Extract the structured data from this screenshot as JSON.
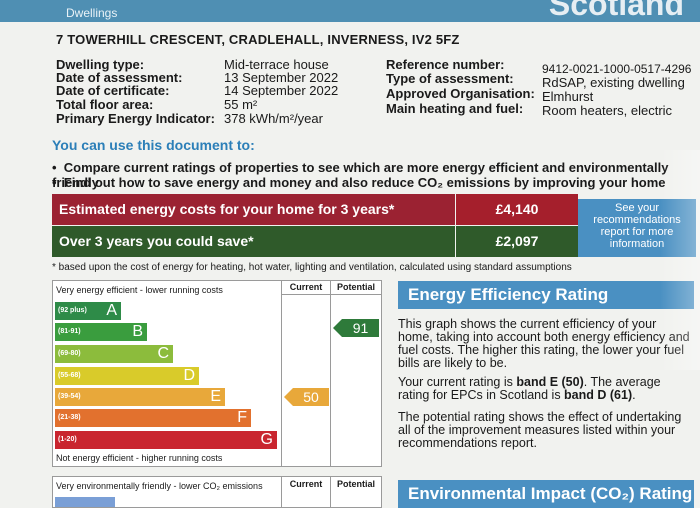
{
  "header": {
    "breadcrumb": "Dwellings",
    "brand": "Scotland"
  },
  "address": "7 TOWERHILL CRESCENT, CRADLEHALL, INVERNESS, IV2 5FZ",
  "left_info": [
    {
      "label": "Dwelling type:",
      "value": "Mid-terrace house"
    },
    {
      "label": "Date of assessment:",
      "value": "13 September 2022"
    },
    {
      "label": "Date of certificate:",
      "value": "14 September 2022"
    },
    {
      "label": "Total floor area:",
      "value": "55 m²"
    },
    {
      "label": "Primary Energy Indicator:",
      "value": "378 kWh/m²/year"
    }
  ],
  "right_info": [
    {
      "label": "Reference number:",
      "value": "9412-0021-1000-0517-4296"
    },
    {
      "label": "Type of assessment:",
      "value": "RdSAP, existing dwelling"
    },
    {
      "label": "Approved Organisation:",
      "value": "Elmhurst"
    },
    {
      "label": "Main heating and fuel:",
      "value": "Room heaters, electric"
    }
  ],
  "use_heading": "You can use this document to:",
  "bullets": [
    "Compare current ratings of properties to see which are more energy efficient and environmentally friendly",
    "Find out how to save energy and money and also reduce CO₂ emissions by improving your home"
  ],
  "costs": [
    {
      "label": "Estimated energy costs for your home for 3 years*",
      "value": "£4,140",
      "label_color": "#9b2232",
      "value_color": "#a51f2c"
    },
    {
      "label": "Over 3 years you could save*",
      "value": "£2,097",
      "label_color": "#2f5a2a",
      "value_color": "#2f5a2a"
    }
  ],
  "recommend_box": "See your recommendations report for more information",
  "footnote": "* based upon the cost of energy for heating, hot water, lighting and ventilation, calculated using standard assumptions",
  "chart": {
    "top_caption": "Very energy efficient - lower running costs",
    "bottom_caption": "Not energy efficient - higher running costs",
    "col_current": "Current",
    "col_potential": "Potential",
    "bands": [
      {
        "range": "(92 plus)",
        "letter": "A",
        "color": "#2e8b48"
      },
      {
        "range": "(81-91)",
        "letter": "B",
        "color": "#3a9d3e"
      },
      {
        "range": "(69-80)",
        "letter": "C",
        "color": "#8cbc3c"
      },
      {
        "range": "(55-68)",
        "letter": "D",
        "color": "#d9cb2a"
      },
      {
        "range": "(39-54)",
        "letter": "E",
        "color": "#e8a83a"
      },
      {
        "range": "(21-38)",
        "letter": "F",
        "color": "#e2712e"
      },
      {
        "range": "(1-20)",
        "letter": "G",
        "color": "#c9252f"
      }
    ],
    "current": "50",
    "potential": "91",
    "current_color": "#e8a83a",
    "potential_color": "#3a9d3e"
  },
  "chart2": {
    "top_caption": "Very environmentally friendly - lower CO₂ emissions",
    "col_current": "Current",
    "col_potential": "Potential"
  },
  "eer": {
    "heading": "Energy Efficiency Rating",
    "p1": "This graph shows the current efficiency of your home, taking into account both energy efficiency and fuel costs. The higher this rating, the lower your fuel bills are likely to be.",
    "p2_pre": "Your current rating is ",
    "p2_band": "band E (50)",
    "p2_mid": ". The average rating for EPCs in Scotland is ",
    "p2_avg": "band D (61)",
    "p2_end": ".",
    "p3": "The potential rating shows the effect of undertaking all of the improvement measures listed within your recommendations report."
  },
  "env_heading": "Environmental Impact (CO₂) Rating"
}
